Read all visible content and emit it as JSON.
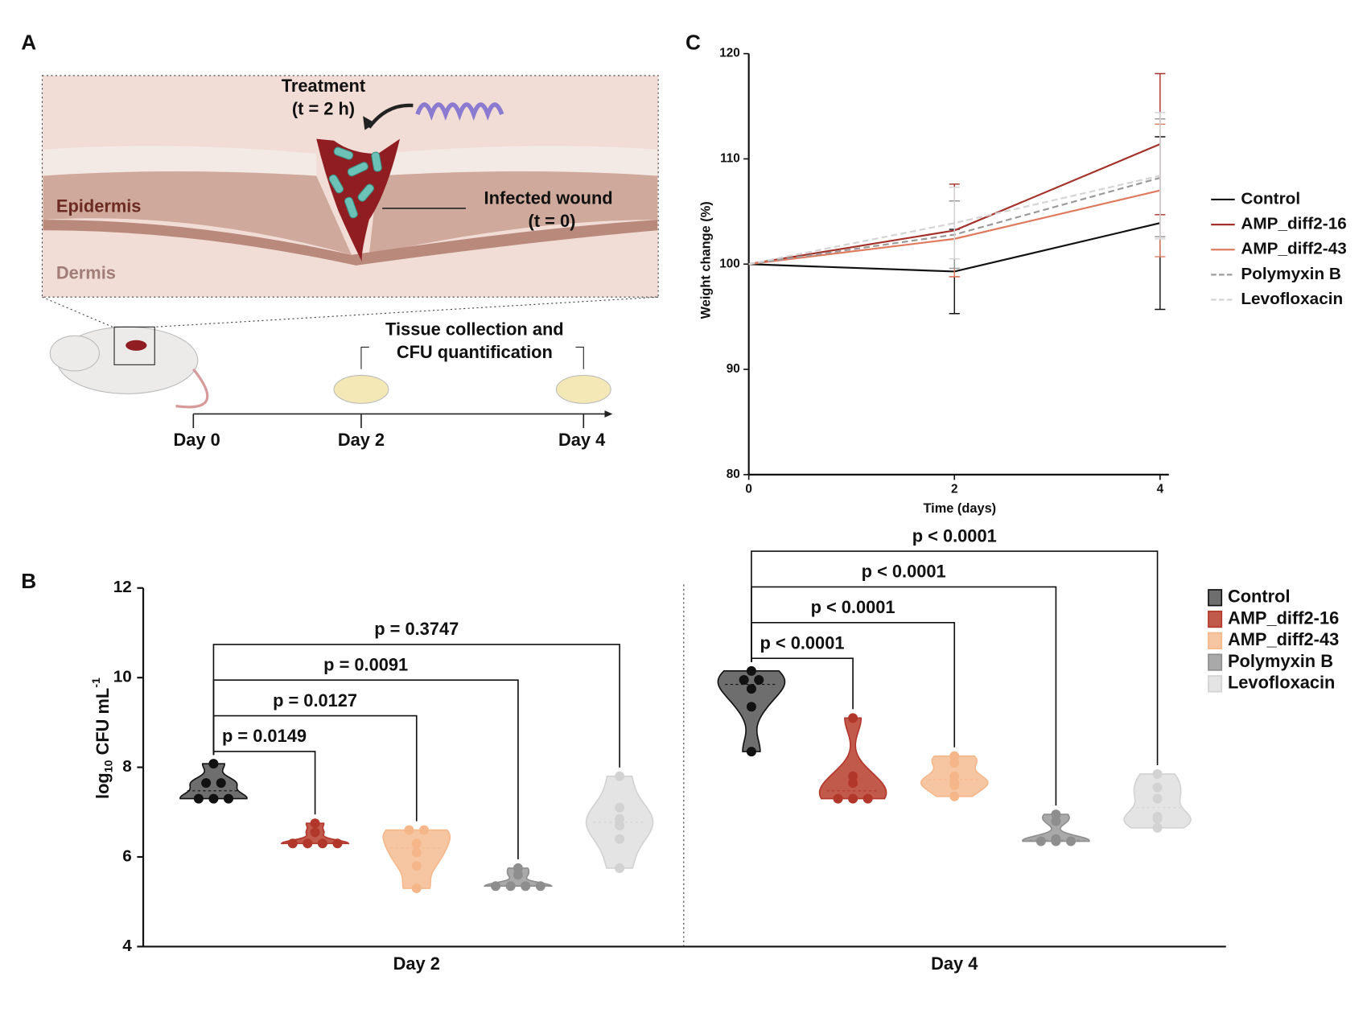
{
  "diagram": {
    "panel": "A",
    "treatment": "Treatment",
    "treatment_time": "(t = 2 h)",
    "epidermis": "Epidermis",
    "dermis": "Dermis",
    "wound": "Infected wound",
    "wound_time": "(t = 0)",
    "collection_1": "Tissue collection and",
    "collection_2": "CFU quantification",
    "days": [
      "Day 0",
      "Day 2",
      "Day 4"
    ]
  },
  "chart_data": [
    {
      "type": "violin",
      "panel": "B",
      "ylabel": [
        "log",
        "10",
        " CFU mL",
        "-1"
      ],
      "categories": [
        "Day 2",
        "Day 4"
      ],
      "ylim": [
        4,
        12
      ],
      "yticks": [
        4,
        6,
        8,
        10,
        12
      ],
      "series": [
        {
          "name": "Control",
          "color": "#6e6e6e",
          "point_color": "#111111",
          "values": [
            [
              8.08,
              7.65,
              7.65,
              7.3,
              7.3,
              7.3
            ],
            [
              10.15,
              9.95,
              9.95,
              9.75,
              9.35,
              8.35
            ]
          ]
        },
        {
          "name": "AMP_diff2-16",
          "color": "#c25a4c",
          "point_color": "#b2372b",
          "values": [
            [
              6.75,
              6.55,
              6.3,
              6.3,
              6.3,
              6.3
            ],
            [
              9.1,
              7.8,
              7.65,
              7.3,
              7.3,
              7.3
            ]
          ]
        },
        {
          "name": "AMP_diff2-43",
          "color": "#f6c6a2",
          "point_color": "#f5b789",
          "values": [
            [
              6.6,
              6.6,
              6.3,
              6.1,
              5.8,
              5.3
            ],
            [
              8.25,
              8.1,
              7.8,
              7.65,
              7.6,
              7.35
            ]
          ]
        },
        {
          "name": "Polymyxin B",
          "color": "#a9a9a9",
          "point_color": "#8e8e8e",
          "values": [
            [
              5.75,
              5.6,
              5.35,
              5.35,
              5.35,
              5.35
            ],
            [
              6.95,
              6.8,
              6.4,
              6.35,
              6.35,
              6.35
            ]
          ]
        },
        {
          "name": "Levofloxacin",
          "color": "#e4e4e4",
          "point_color": "#d2d2d2",
          "values": [
            [
              7.8,
              7.1,
              6.85,
              6.7,
              6.4,
              5.75
            ],
            [
              7.85,
              7.55,
              7.3,
              6.9,
              6.85,
              6.65
            ]
          ]
        }
      ],
      "comparisons": [
        [
          "p = 0.0149",
          "p = 0.0127",
          "p = 0.0091",
          "p = 0.3747"
        ],
        [
          "p < 0.0001",
          "p < 0.0001",
          "p < 0.0001",
          "p < 0.0001"
        ]
      ]
    },
    {
      "type": "line",
      "panel": "C",
      "xlabel": "Time (days)",
      "ylabel": "Weight change (%)",
      "x": [
        0,
        2,
        4
      ],
      "xlim": [
        0,
        4
      ],
      "xticks": [
        0,
        2,
        4
      ],
      "ylim": [
        80,
        120
      ],
      "yticks": [
        80,
        90,
        100,
        110,
        120
      ],
      "series": [
        {
          "name": "Control",
          "color": "#111111",
          "dashed": false,
          "values": [
            100,
            99.3,
            103.9
          ],
          "errors": [
            null,
            4.0,
            8.2
          ]
        },
        {
          "name": "AMP_diff2-16",
          "color": "#a5322a",
          "dashed": false,
          "values": [
            100,
            103.2,
            111.4
          ],
          "errors": [
            null,
            4.4,
            6.7
          ]
        },
        {
          "name": "AMP_diff2-43",
          "color": "#e07a5f",
          "dashed": false,
          "values": [
            100,
            102.4,
            107.0
          ],
          "errors": [
            null,
            3.6,
            6.3
          ]
        },
        {
          "name": "Polymyxin B",
          "color": "#9a9a9a",
          "dashed": true,
          "values": [
            100,
            102.8,
            108.2
          ],
          "errors": [
            null,
            3.2,
            5.6
          ]
        },
        {
          "name": "Levofloxacin",
          "color": "#d4d4d4",
          "dashed": true,
          "values": [
            100,
            103.9,
            108.4
          ],
          "errors": [
            null,
            3.4,
            6.0
          ]
        }
      ]
    }
  ]
}
